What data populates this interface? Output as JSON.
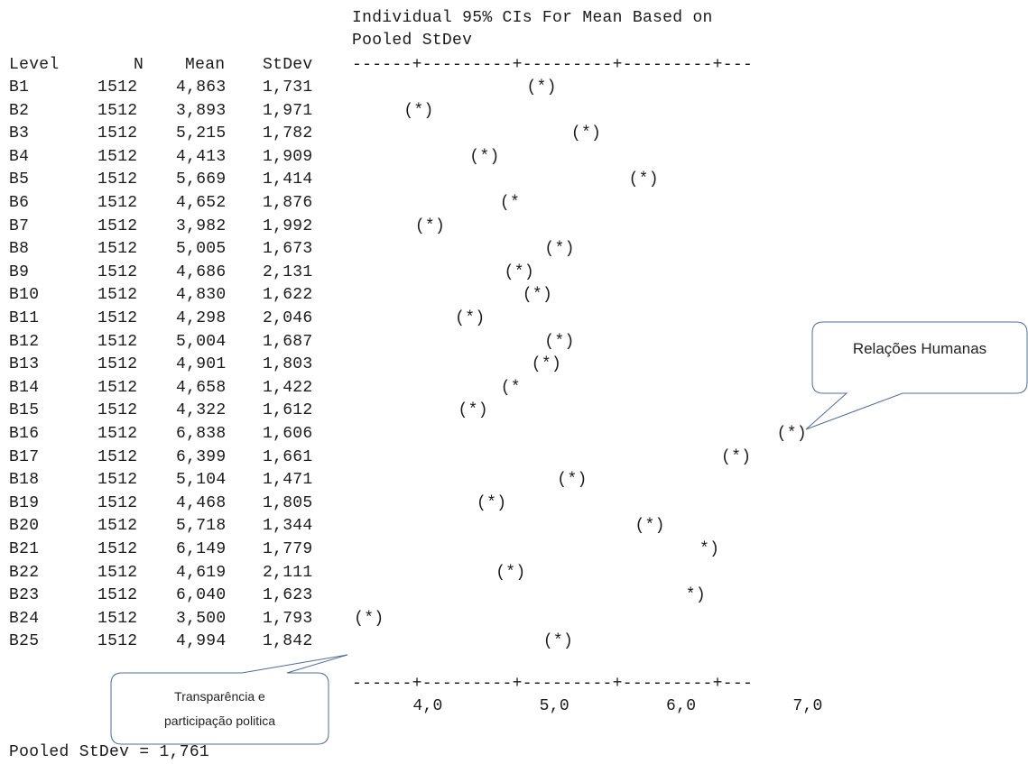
{
  "header": {
    "ci_title_line1": "Individual 95% CIs For Mean Based on",
    "ci_title_line2": "Pooled StDev"
  },
  "table": {
    "columns": [
      "Level",
      "N",
      "Mean",
      "StDev"
    ]
  },
  "axis_line_top": "------+---------+---------+---------+---",
  "axis_line_bottom": "------+---------+---------+---------+---",
  "pooled_stdev_label": "Pooled StDev = 1,761",
  "callouts": {
    "relacoes": "Relações Humanas",
    "transparencia_line1": "Transparência e",
    "transparencia_line2": "participação politica"
  },
  "chart_data": {
    "type": "scatter",
    "title": "Individual 95% CIs For Mean Based on Pooled StDev",
    "x_ticks": [
      "4,0",
      "5,0",
      "6,0",
      "7,0"
    ],
    "rows": [
      {
        "level": "B1",
        "n": "1512",
        "mean_text": "4,863",
        "stdev": "1,731",
        "mean": 4.863,
        "marker": "(*)"
      },
      {
        "level": "B2",
        "n": "1512",
        "mean_text": "3,893",
        "stdev": "1,971",
        "mean": 3.893,
        "marker": "(*)"
      },
      {
        "level": "B3",
        "n": "1512",
        "mean_text": "5,215",
        "stdev": "1,782",
        "mean": 5.215,
        "marker": "(*)"
      },
      {
        "level": "B4",
        "n": "1512",
        "mean_text": "4,413",
        "stdev": "1,909",
        "mean": 4.413,
        "marker": "(*)"
      },
      {
        "level": "B5",
        "n": "1512",
        "mean_text": "5,669",
        "stdev": "1,414",
        "mean": 5.669,
        "marker": "(*)"
      },
      {
        "level": "B6",
        "n": "1512",
        "mean_text": "4,652",
        "stdev": "1,876",
        "mean": 4.652,
        "marker": "(*"
      },
      {
        "level": "B7",
        "n": "1512",
        "mean_text": "3,982",
        "stdev": "1,992",
        "mean": 3.982,
        "marker": "(*)"
      },
      {
        "level": "B8",
        "n": "1512",
        "mean_text": "5,005",
        "stdev": "1,673",
        "mean": 5.005,
        "marker": "(*)"
      },
      {
        "level": "B9",
        "n": "1512",
        "mean_text": "4,686",
        "stdev": "2,131",
        "mean": 4.686,
        "marker": "(*)"
      },
      {
        "level": "B10",
        "n": "1512",
        "mean_text": "4,830",
        "stdev": "1,622",
        "mean": 4.83,
        "marker": "(*)"
      },
      {
        "level": "B11",
        "n": "1512",
        "mean_text": "4,298",
        "stdev": "2,046",
        "mean": 4.298,
        "marker": "(*)"
      },
      {
        "level": "B12",
        "n": "1512",
        "mean_text": "5,004",
        "stdev": "1,687",
        "mean": 5.004,
        "marker": "(*)"
      },
      {
        "level": "B13",
        "n": "1512",
        "mean_text": "4,901",
        "stdev": "1,803",
        "mean": 4.901,
        "marker": "(*)"
      },
      {
        "level": "B14",
        "n": "1512",
        "mean_text": "4,658",
        "stdev": "1,422",
        "mean": 4.658,
        "marker": "(*"
      },
      {
        "level": "B15",
        "n": "1512",
        "mean_text": "4,322",
        "stdev": "1,612",
        "mean": 4.322,
        "marker": "(*)"
      },
      {
        "level": "B16",
        "n": "1512",
        "mean_text": "6,838",
        "stdev": "1,606",
        "mean": 6.838,
        "marker": "(*)"
      },
      {
        "level": "B17",
        "n": "1512",
        "mean_text": "6,399",
        "stdev": "1,661",
        "mean": 6.399,
        "marker": "(*)"
      },
      {
        "level": "B18",
        "n": "1512",
        "mean_text": "5,104",
        "stdev": "1,471",
        "mean": 5.104,
        "marker": "(*)"
      },
      {
        "level": "B19",
        "n": "1512",
        "mean_text": "4,468",
        "stdev": "1,805",
        "mean": 4.468,
        "marker": "(*)"
      },
      {
        "level": "B20",
        "n": "1512",
        "mean_text": "5,718",
        "stdev": "1,344",
        "mean": 5.718,
        "marker": "(*)"
      },
      {
        "level": "B21",
        "n": "1512",
        "mean_text": "6,149",
        "stdev": "1,779",
        "mean": 6.149,
        "marker": "*)"
      },
      {
        "level": "B22",
        "n": "1512",
        "mean_text": "4,619",
        "stdev": "2,111",
        "mean": 4.619,
        "marker": "(*)"
      },
      {
        "level": "B23",
        "n": "1512",
        "mean_text": "6,040",
        "stdev": "1,623",
        "mean": 6.04,
        "marker": "*)"
      },
      {
        "level": "B24",
        "n": "1512",
        "mean_text": "3,500",
        "stdev": "1,793",
        "mean": 3.5,
        "marker": "(*)"
      },
      {
        "level": "B25",
        "n": "1512",
        "mean_text": "4,994",
        "stdev": "1,842",
        "mean": 4.994,
        "marker": "(*)"
      }
    ]
  }
}
